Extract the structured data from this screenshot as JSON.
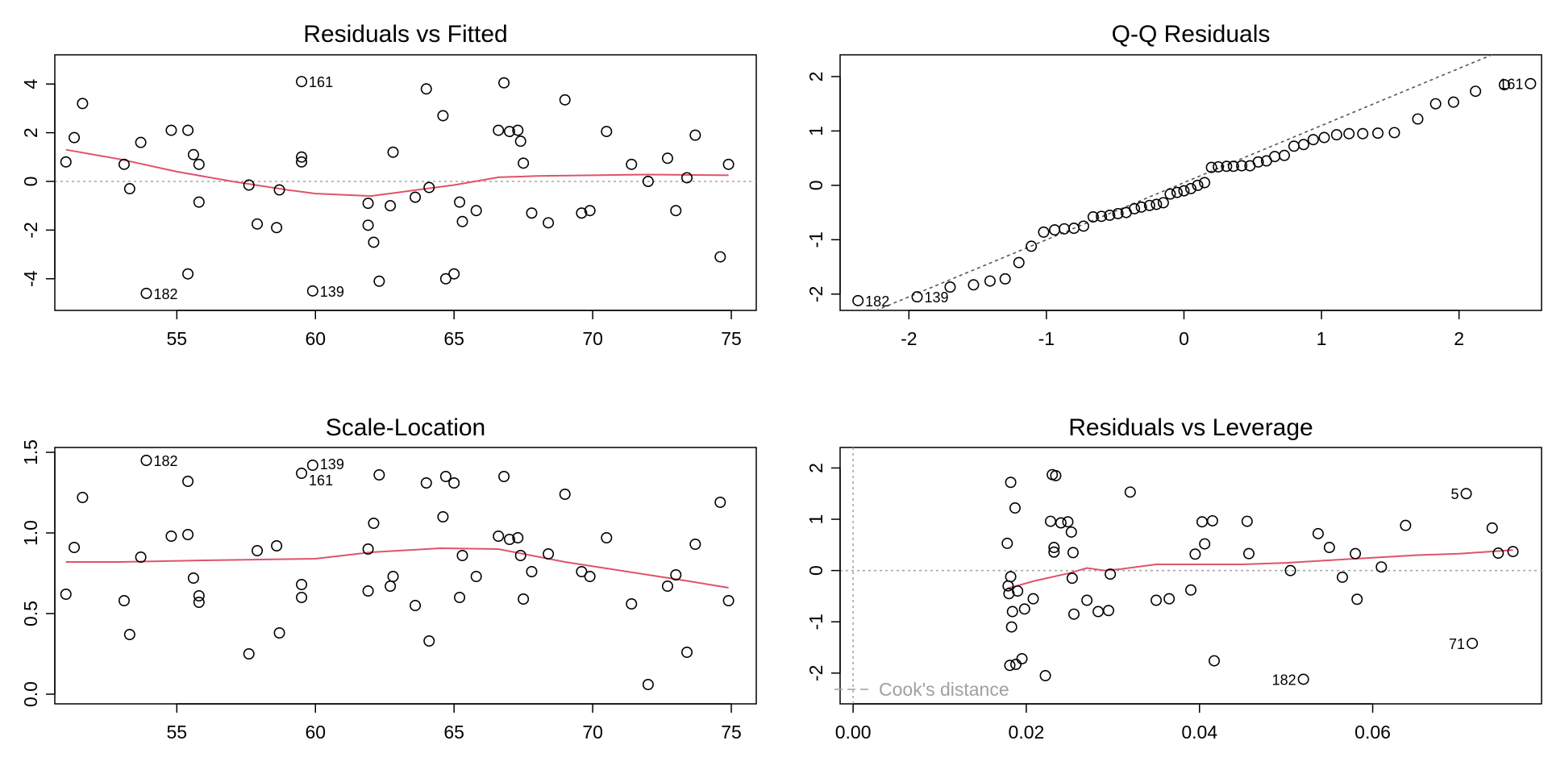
{
  "colors": {
    "smooth": "#DF536B",
    "reference": "#a6a6a6",
    "qqline": "#555555",
    "points": "#000000",
    "legend_text": "#a0a0a0"
  },
  "chart_data": [
    {
      "type": "scatter",
      "title": "Residuals vs Fitted",
      "xlabel": "",
      "ylabel": "",
      "xlim": [
        50.6,
        75.9
      ],
      "ylim": [
        -5.3,
        5.2
      ],
      "xticks": [
        "55",
        "60",
        "65",
        "70",
        "75"
      ],
      "yticks": [
        "-4",
        "-2",
        "0",
        "2",
        "4"
      ],
      "reference_line": {
        "type": "h",
        "value": 0
      },
      "points": [
        {
          "x": 51.0,
          "y": 0.8
        },
        {
          "x": 51.3,
          "y": 1.8
        },
        {
          "x": 51.6,
          "y": 3.2
        },
        {
          "x": 53.1,
          "y": 0.7
        },
        {
          "x": 53.3,
          "y": -0.3
        },
        {
          "x": 53.7,
          "y": 1.6
        },
        {
          "x": 53.9,
          "y": -4.6,
          "label": "182"
        },
        {
          "x": 54.8,
          "y": 2.1
        },
        {
          "x": 55.4,
          "y": 2.1
        },
        {
          "x": 55.4,
          "y": -3.8
        },
        {
          "x": 55.6,
          "y": 1.1
        },
        {
          "x": 55.8,
          "y": 0.7
        },
        {
          "x": 55.8,
          "y": -0.85
        },
        {
          "x": 57.6,
          "y": -0.15
        },
        {
          "x": 57.9,
          "y": -1.75
        },
        {
          "x": 58.6,
          "y": -1.9
        },
        {
          "x": 58.7,
          "y": -0.35
        },
        {
          "x": 59.5,
          "y": 4.1,
          "label": "161"
        },
        {
          "x": 59.5,
          "y": 1.0
        },
        {
          "x": 59.5,
          "y": 0.8
        },
        {
          "x": 59.9,
          "y": -4.5,
          "label": "139"
        },
        {
          "x": 61.9,
          "y": -0.9
        },
        {
          "x": 61.9,
          "y": -1.8
        },
        {
          "x": 62.1,
          "y": -2.5
        },
        {
          "x": 62.3,
          "y": -4.1
        },
        {
          "x": 62.7,
          "y": -1.0
        },
        {
          "x": 62.8,
          "y": 1.2
        },
        {
          "x": 63.6,
          "y": -0.65
        },
        {
          "x": 64.0,
          "y": 3.8
        },
        {
          "x": 64.1,
          "y": -0.25
        },
        {
          "x": 64.6,
          "y": 2.7
        },
        {
          "x": 64.7,
          "y": -4.0
        },
        {
          "x": 65.0,
          "y": -3.8
        },
        {
          "x": 65.2,
          "y": -0.85
        },
        {
          "x": 65.3,
          "y": -1.65
        },
        {
          "x": 65.8,
          "y": -1.2
        },
        {
          "x": 66.6,
          "y": 2.1
        },
        {
          "x": 66.8,
          "y": 4.05
        },
        {
          "x": 67.0,
          "y": 2.05
        },
        {
          "x": 67.3,
          "y": 2.1
        },
        {
          "x": 67.4,
          "y": 1.65
        },
        {
          "x": 67.5,
          "y": 0.75
        },
        {
          "x": 67.8,
          "y": -1.3
        },
        {
          "x": 68.4,
          "y": -1.7
        },
        {
          "x": 69.0,
          "y": 3.35
        },
        {
          "x": 69.6,
          "y": -1.3
        },
        {
          "x": 69.9,
          "y": -1.2
        },
        {
          "x": 70.5,
          "y": 2.05
        },
        {
          "x": 71.4,
          "y": 0.7
        },
        {
          "x": 72.0,
          "y": 0.0
        },
        {
          "x": 72.7,
          "y": 0.95
        },
        {
          "x": 73.0,
          "y": -1.2
        },
        {
          "x": 73.4,
          "y": 0.15
        },
        {
          "x": 73.7,
          "y": 1.9
        },
        {
          "x": 74.6,
          "y": -3.1
        },
        {
          "x": 74.9,
          "y": 0.7
        }
      ],
      "smooth": [
        [
          51.0,
          1.3
        ],
        [
          53.0,
          0.9
        ],
        [
          55.0,
          0.4
        ],
        [
          57.0,
          0.0
        ],
        [
          59.0,
          -0.35
        ],
        [
          60.0,
          -0.5
        ],
        [
          62.0,
          -0.6
        ],
        [
          63.0,
          -0.45
        ],
        [
          64.0,
          -0.3
        ],
        [
          65.0,
          -0.15
        ],
        [
          66.0,
          0.05
        ],
        [
          66.6,
          0.17
        ],
        [
          68.0,
          0.22
        ],
        [
          70.0,
          0.25
        ],
        [
          72.0,
          0.28
        ],
        [
          74.9,
          0.25
        ]
      ]
    },
    {
      "type": "scatter",
      "title": "Q-Q Residuals",
      "xlabel": "",
      "ylabel": "",
      "xlim": [
        -2.5,
        2.6
      ],
      "ylim": [
        -2.3,
        2.4
      ],
      "xticks": [
        "-2",
        "-1",
        "0",
        "1",
        "2"
      ],
      "yticks": [
        "-2",
        "-1",
        "0",
        "1",
        "2"
      ],
      "reference_line": {
        "type": "ab",
        "intercept": 0.05,
        "slope": 1.05
      },
      "points": [
        {
          "x": -2.37,
          "y": -2.12,
          "label": "182"
        },
        {
          "x": -1.94,
          "y": -2.05,
          "label": "139"
        },
        {
          "x": -1.7,
          "y": -1.87
        },
        {
          "x": -1.53,
          "y": -1.83
        },
        {
          "x": -1.41,
          "y": -1.76
        },
        {
          "x": -1.3,
          "y": -1.72
        },
        {
          "x": -1.2,
          "y": -1.42
        },
        {
          "x": -1.11,
          "y": -1.12
        },
        {
          "x": -1.02,
          "y": -0.86
        },
        {
          "x": -0.94,
          "y": -0.82
        },
        {
          "x": -0.87,
          "y": -0.8
        },
        {
          "x": -0.8,
          "y": -0.79
        },
        {
          "x": -0.73,
          "y": -0.75
        },
        {
          "x": -0.66,
          "y": -0.58
        },
        {
          "x": -0.6,
          "y": -0.57
        },
        {
          "x": -0.54,
          "y": -0.55
        },
        {
          "x": -0.48,
          "y": -0.52
        },
        {
          "x": -0.42,
          "y": -0.5
        },
        {
          "x": -0.36,
          "y": -0.43
        },
        {
          "x": -0.31,
          "y": -0.4
        },
        {
          "x": -0.25,
          "y": -0.37
        },
        {
          "x": -0.2,
          "y": -0.35
        },
        {
          "x": -0.15,
          "y": -0.32
        },
        {
          "x": -0.1,
          "y": -0.16
        },
        {
          "x": -0.05,
          "y": -0.13
        },
        {
          "x": 0.0,
          "y": -0.1
        },
        {
          "x": 0.05,
          "y": -0.06
        },
        {
          "x": 0.1,
          "y": 0.0
        },
        {
          "x": 0.15,
          "y": 0.05
        },
        {
          "x": 0.2,
          "y": 0.33
        },
        {
          "x": 0.25,
          "y": 0.34
        },
        {
          "x": 0.31,
          "y": 0.35
        },
        {
          "x": 0.36,
          "y": 0.35
        },
        {
          "x": 0.42,
          "y": 0.36
        },
        {
          "x": 0.48,
          "y": 0.36
        },
        {
          "x": 0.54,
          "y": 0.43
        },
        {
          "x": 0.6,
          "y": 0.45
        },
        {
          "x": 0.66,
          "y": 0.53
        },
        {
          "x": 0.73,
          "y": 0.55
        },
        {
          "x": 0.8,
          "y": 0.72
        },
        {
          "x": 0.87,
          "y": 0.75
        },
        {
          "x": 0.94,
          "y": 0.84
        },
        {
          "x": 1.02,
          "y": 0.88
        },
        {
          "x": 1.11,
          "y": 0.93
        },
        {
          "x": 1.2,
          "y": 0.95
        },
        {
          "x": 1.3,
          "y": 0.95
        },
        {
          "x": 1.41,
          "y": 0.96
        },
        {
          "x": 1.53,
          "y": 0.97
        },
        {
          "x": 1.7,
          "y": 1.22
        },
        {
          "x": 1.83,
          "y": 1.5
        },
        {
          "x": 1.96,
          "y": 1.53
        },
        {
          "x": 2.12,
          "y": 1.73
        },
        {
          "x": 2.33,
          "y": 1.85
        },
        {
          "x": 2.52,
          "y": 1.87,
          "label": "161"
        }
      ]
    },
    {
      "type": "scatter",
      "title": "Scale-Location",
      "xlabel": "",
      "ylabel": "",
      "xlim": [
        50.6,
        75.9
      ],
      "ylim": [
        -0.06,
        1.53
      ],
      "xticks": [
        "55",
        "60",
        "65",
        "70",
        "75"
      ],
      "yticks": [
        "0.0",
        "0.5",
        "1.0",
        "1.5"
      ],
      "points": [
        {
          "x": 51.0,
          "y": 0.62
        },
        {
          "x": 51.3,
          "y": 0.91
        },
        {
          "x": 51.6,
          "y": 1.22
        },
        {
          "x": 53.1,
          "y": 0.58
        },
        {
          "x": 53.3,
          "y": 0.37
        },
        {
          "x": 53.7,
          "y": 0.85
        },
        {
          "x": 53.9,
          "y": 1.45,
          "label": "182"
        },
        {
          "x": 54.8,
          "y": 0.98
        },
        {
          "x": 55.4,
          "y": 1.32
        },
        {
          "x": 55.4,
          "y": 0.99
        },
        {
          "x": 55.6,
          "y": 0.72
        },
        {
          "x": 55.8,
          "y": 0.61
        },
        {
          "x": 55.8,
          "y": 0.57
        },
        {
          "x": 57.6,
          "y": 0.25
        },
        {
          "x": 57.9,
          "y": 0.89
        },
        {
          "x": 58.6,
          "y": 0.92
        },
        {
          "x": 58.7,
          "y": 0.38
        },
        {
          "x": 59.5,
          "y": 1.37,
          "label": "161"
        },
        {
          "x": 59.5,
          "y": 0.68
        },
        {
          "x": 59.5,
          "y": 0.6
        },
        {
          "x": 59.9,
          "y": 1.42,
          "label": "139"
        },
        {
          "x": 61.9,
          "y": 0.64
        },
        {
          "x": 61.9,
          "y": 0.9
        },
        {
          "x": 62.1,
          "y": 1.06
        },
        {
          "x": 62.3,
          "y": 1.36
        },
        {
          "x": 62.7,
          "y": 0.67
        },
        {
          "x": 62.8,
          "y": 0.73
        },
        {
          "x": 63.6,
          "y": 0.55
        },
        {
          "x": 64.0,
          "y": 1.31
        },
        {
          "x": 64.1,
          "y": 0.33
        },
        {
          "x": 64.6,
          "y": 1.1
        },
        {
          "x": 64.7,
          "y": 1.35
        },
        {
          "x": 65.0,
          "y": 1.31
        },
        {
          "x": 65.2,
          "y": 0.6
        },
        {
          "x": 65.3,
          "y": 0.86
        },
        {
          "x": 65.8,
          "y": 0.73
        },
        {
          "x": 66.6,
          "y": 0.98
        },
        {
          "x": 66.8,
          "y": 1.35
        },
        {
          "x": 67.0,
          "y": 0.96
        },
        {
          "x": 67.3,
          "y": 0.97
        },
        {
          "x": 67.4,
          "y": 0.86
        },
        {
          "x": 67.5,
          "y": 0.59
        },
        {
          "x": 67.8,
          "y": 0.76
        },
        {
          "x": 68.4,
          "y": 0.87
        },
        {
          "x": 69.0,
          "y": 1.24
        },
        {
          "x": 69.6,
          "y": 0.76
        },
        {
          "x": 69.9,
          "y": 0.73
        },
        {
          "x": 70.5,
          "y": 0.97
        },
        {
          "x": 71.4,
          "y": 0.56
        },
        {
          "x": 72.0,
          "y": 0.06
        },
        {
          "x": 72.7,
          "y": 0.67
        },
        {
          "x": 73.0,
          "y": 0.74
        },
        {
          "x": 73.4,
          "y": 0.26
        },
        {
          "x": 73.7,
          "y": 0.93
        },
        {
          "x": 74.6,
          "y": 1.19
        },
        {
          "x": 74.9,
          "y": 0.58
        }
      ],
      "smooth": [
        [
          51.0,
          0.82
        ],
        [
          53.0,
          0.82
        ],
        [
          56.0,
          0.83
        ],
        [
          58.0,
          0.835
        ],
        [
          60.0,
          0.84
        ],
        [
          62.0,
          0.88
        ],
        [
          63.0,
          0.89
        ],
        [
          64.5,
          0.905
        ],
        [
          66.6,
          0.9
        ],
        [
          67.5,
          0.87
        ],
        [
          69.0,
          0.82
        ],
        [
          70.5,
          0.78
        ],
        [
          72.0,
          0.74
        ],
        [
          73.5,
          0.7
        ],
        [
          74.9,
          0.66
        ]
      ]
    },
    {
      "type": "scatter",
      "title": "Residuals vs Leverage",
      "xlabel": "",
      "ylabel": "",
      "xlim": [
        -0.0015,
        0.0795
      ],
      "ylim": [
        -2.6,
        2.4
      ],
      "xticks": [
        "0.00",
        "0.02",
        "0.04",
        "0.06"
      ],
      "yticks": [
        "-2",
        "-1",
        "0",
        "1",
        "2"
      ],
      "reference_line": {
        "type": "h",
        "value": 0
      },
      "legend": {
        "position": "bottom-left",
        "entries": [
          "Cook's distance"
        ]
      },
      "points": [
        {
          "x": 0.0178,
          "y": 0.53
        },
        {
          "x": 0.0179,
          "y": -0.3
        },
        {
          "x": 0.018,
          "y": -0.45
        },
        {
          "x": 0.0181,
          "y": -1.85
        },
        {
          "x": 0.0182,
          "y": -0.12
        },
        {
          "x": 0.0182,
          "y": 1.72
        },
        {
          "x": 0.0183,
          "y": -1.1
        },
        {
          "x": 0.0184,
          "y": -0.8
        },
        {
          "x": 0.0187,
          "y": 1.22
        },
        {
          "x": 0.0188,
          "y": -1.83
        },
        {
          "x": 0.019,
          "y": -0.4
        },
        {
          "x": 0.0195,
          "y": -1.72
        },
        {
          "x": 0.0198,
          "y": -0.75
        },
        {
          "x": 0.0208,
          "y": -0.55
        },
        {
          "x": 0.0222,
          "y": -2.05
        },
        {
          "x": 0.0228,
          "y": 0.96
        },
        {
          "x": 0.023,
          "y": 1.87
        },
        {
          "x": 0.0232,
          "y": 0.45
        },
        {
          "x": 0.0232,
          "y": 0.36
        },
        {
          "x": 0.0234,
          "y": 1.85
        },
        {
          "x": 0.024,
          "y": 0.93
        },
        {
          "x": 0.0248,
          "y": 0.95
        },
        {
          "x": 0.0252,
          "y": 0.75
        },
        {
          "x": 0.0253,
          "y": -0.15
        },
        {
          "x": 0.0254,
          "y": 0.35
        },
        {
          "x": 0.0255,
          "y": -0.85
        },
        {
          "x": 0.027,
          "y": -0.58
        },
        {
          "x": 0.0283,
          "y": -0.8
        },
        {
          "x": 0.0295,
          "y": -0.78
        },
        {
          "x": 0.0297,
          "y": -0.07
        },
        {
          "x": 0.032,
          "y": 1.53
        },
        {
          "x": 0.035,
          "y": -0.58
        },
        {
          "x": 0.0365,
          "y": -0.55
        },
        {
          "x": 0.039,
          "y": -0.38
        },
        {
          "x": 0.0395,
          "y": 0.32
        },
        {
          "x": 0.0403,
          "y": 0.95
        },
        {
          "x": 0.0406,
          "y": 0.52
        },
        {
          "x": 0.0415,
          "y": 0.97
        },
        {
          "x": 0.0417,
          "y": -1.76
        },
        {
          "x": 0.0455,
          "y": 0.96
        },
        {
          "x": 0.0457,
          "y": 0.33
        },
        {
          "x": 0.0505,
          "y": 0.0
        },
        {
          "x": 0.052,
          "y": -2.12,
          "label": "182"
        },
        {
          "x": 0.0537,
          "y": 0.72
        },
        {
          "x": 0.055,
          "y": 0.45
        },
        {
          "x": 0.0565,
          "y": -0.13
        },
        {
          "x": 0.058,
          "y": 0.33
        },
        {
          "x": 0.0582,
          "y": -0.56
        },
        {
          "x": 0.061,
          "y": 0.07
        },
        {
          "x": 0.0638,
          "y": 0.88
        },
        {
          "x": 0.0708,
          "y": 1.5,
          "label": "5"
        },
        {
          "x": 0.0715,
          "y": -1.42,
          "label": "71"
        },
        {
          "x": 0.0738,
          "y": 0.83
        },
        {
          "x": 0.0745,
          "y": 0.34
        },
        {
          "x": 0.0762,
          "y": 0.37
        }
      ],
      "smooth": [
        [
          0.0178,
          -0.35
        ],
        [
          0.021,
          -0.2
        ],
        [
          0.025,
          -0.05
        ],
        [
          0.027,
          0.05
        ],
        [
          0.029,
          0.0
        ],
        [
          0.031,
          0.03
        ],
        [
          0.035,
          0.12
        ],
        [
          0.04,
          0.12
        ],
        [
          0.045,
          0.12
        ],
        [
          0.05,
          0.15
        ],
        [
          0.055,
          0.2
        ],
        [
          0.06,
          0.25
        ],
        [
          0.065,
          0.3
        ],
        [
          0.07,
          0.33
        ],
        [
          0.0762,
          0.4
        ]
      ]
    }
  ]
}
